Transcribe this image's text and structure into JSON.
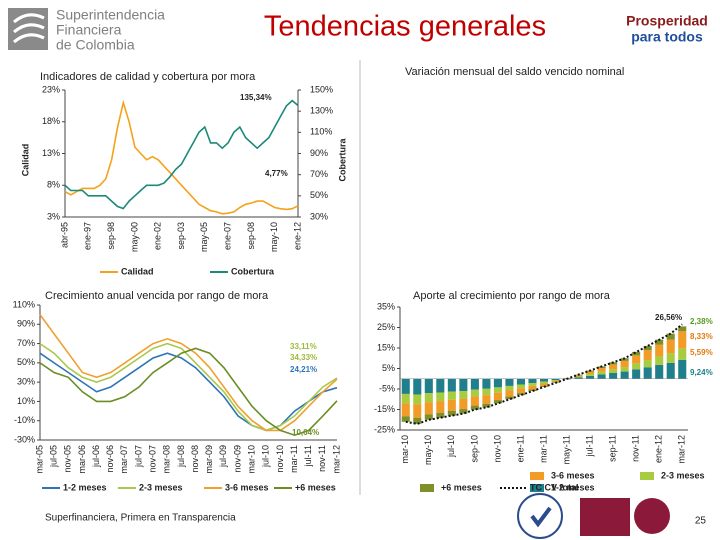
{
  "header": {
    "org": [
      "Superintendencia",
      "Financiera",
      "de Colombia"
    ],
    "title": "Tendencias generales",
    "logo": [
      "Prosperidad",
      "para todos"
    ]
  },
  "footer": {
    "text": "Superfinanciera, Primera en Transparencia",
    "page": "25"
  },
  "chart_data": [
    {
      "type": "line",
      "title": "Indicadores de calidad y cobertura por mora",
      "ylabel": "Calidad",
      "y2label": "Cobertura",
      "categories": [
        "abr-95",
        null,
        null,
        null,
        "ene-97",
        null,
        null,
        null,
        "sep-98",
        null,
        null,
        null,
        "may-00",
        null,
        null,
        null,
        "ene-02",
        null,
        null,
        null,
        "sep-03",
        null,
        null,
        null,
        "may-05",
        null,
        null,
        null,
        "ene-07",
        null,
        null,
        null,
        "sep-08",
        null,
        null,
        null,
        "may-10",
        null,
        null,
        null,
        "ene-12"
      ],
      "series": [
        {
          "name": "Calidad",
          "color": "#f5a21b",
          "values": [
            7,
            6.5,
            7,
            7.5,
            7.5,
            7.5,
            8,
            9,
            12,
            17,
            21,
            18,
            14,
            13,
            12,
            12.5,
            12,
            11,
            10,
            9,
            8,
            7,
            6,
            5,
            4.5,
            4,
            3.8,
            3.5,
            3.6,
            3.8,
            4.5,
            5,
            5.2,
            5.5,
            5.5,
            5,
            4.5,
            4.3,
            4.2,
            4.3,
            4.77
          ]
        },
        {
          "name": "Cobertura",
          "color": "#1b8a7a",
          "axis": "y2",
          "values": [
            60,
            55,
            55,
            55,
            50,
            50,
            50,
            50,
            45,
            40,
            38,
            45,
            50,
            55,
            60,
            60,
            60,
            62,
            68,
            75,
            80,
            90,
            100,
            110,
            115,
            100,
            100,
            95,
            100,
            110,
            115,
            105,
            100,
            95,
            100,
            105,
            115,
            125,
            135,
            140,
            135.34
          ]
        }
      ],
      "ylim": [
        3,
        23
      ],
      "yticks": [
        {
          "value": 3,
          "label": "3%"
        },
        {
          "value": 8,
          "label": "8%"
        },
        {
          "value": 13,
          "label": "13%"
        },
        {
          "value": 18,
          "label": "18%"
        },
        {
          "value": 23,
          "label": "23%"
        }
      ],
      "y2lim": [
        30,
        150
      ],
      "y2ticks": [
        {
          "value": 30,
          "label": "30%"
        },
        {
          "value": 50,
          "label": "50%"
        },
        {
          "value": 70,
          "label": "70%"
        },
        {
          "value": 90,
          "label": "90%"
        },
        {
          "value": 110,
          "label": "110%"
        },
        {
          "value": 130,
          "label": "130%"
        },
        {
          "value": 150,
          "label": "150%"
        }
      ],
      "annotations": [
        "135,34%",
        "4,77%"
      ]
    },
    {
      "title": "Variación mensual del saldo vencido nominal"
    },
    {
      "type": "line",
      "title": "Crecimiento anual vencida por rango de mora",
      "categories": [
        "mar-05",
        "jul-05",
        "nov-05",
        "mar-06",
        "jul-06",
        "nov-06",
        "mar-07",
        "jul-07",
        "nov-07",
        "mar-08",
        "jul-08",
        "nov-08",
        "mar-09",
        "jul-09",
        "nov-09",
        "mar-10",
        "jul-10",
        "nov-10",
        "mar-11",
        "jul-11",
        "nov-11",
        "mar-12"
      ],
      "series": [
        {
          "name": "1-2 meses",
          "color": "#2e75b6",
          "values": [
            60,
            50,
            40,
            30,
            20,
            25,
            35,
            45,
            55,
            60,
            55,
            45,
            30,
            15,
            -5,
            -15,
            -20,
            -15,
            0,
            10,
            20,
            24.21
          ]
        },
        {
          "name": "2-3 meses",
          "color": "#a9c94a",
          "values": [
            70,
            60,
            45,
            35,
            30,
            35,
            45,
            55,
            65,
            70,
            65,
            50,
            35,
            20,
            0,
            -15,
            -20,
            -15,
            -5,
            10,
            25,
            34.33
          ]
        },
        {
          "name": "3-6 meses",
          "color": "#f0a030",
          "values": [
            100,
            80,
            60,
            40,
            35,
            40,
            50,
            60,
            70,
            75,
            70,
            60,
            45,
            25,
            5,
            -10,
            -20,
            -20,
            -10,
            5,
            20,
            33.11
          ]
        },
        {
          "name": "+6 meses",
          "color": "#6b8e23",
          "values": [
            50,
            40,
            35,
            20,
            10,
            10,
            15,
            25,
            40,
            50,
            60,
            65,
            60,
            45,
            25,
            5,
            -10,
            -20,
            -25,
            -20,
            -5,
            10.64
          ]
        }
      ],
      "ylim": [
        -30,
        110
      ],
      "yticks": [
        {
          "value": -30,
          "label": "-30%"
        },
        {
          "value": -10,
          "label": "-10%"
        },
        {
          "value": 10,
          "label": "10%"
        },
        {
          "value": 30,
          "label": "30%"
        },
        {
          "value": 50,
          "label": "50%"
        },
        {
          "value": 70,
          "label": "70%"
        },
        {
          "value": 90,
          "label": "90%"
        },
        {
          "value": 110,
          "label": "110%"
        }
      ],
      "annotations": [
        "33,11%",
        "34,33%",
        "24,21%",
        "10,64%"
      ]
    },
    {
      "type": "bar",
      "title": "Aporte al crecimiento por rango de mora",
      "categories": [
        "mar-10",
        null,
        "may-10",
        null,
        "jul-10",
        null,
        "sep-10",
        null,
        "nov-10",
        null,
        "ene-11",
        null,
        "mar-11",
        null,
        "may-11",
        null,
        "jul-11",
        null,
        "sep-11",
        null,
        "nov-11",
        null,
        "ene-12",
        null,
        "mar-12"
      ],
      "series": [
        {
          "name": "1-2 meses",
          "color": "#1f7f8c",
          "values": [
            -7.4,
            -7.7,
            -7,
            -6.7,
            -6.3,
            -6,
            -5.3,
            -4.9,
            -4.2,
            -3.5,
            -2.8,
            -2.1,
            -1.4,
            -0.7,
            0.3,
            0.7,
            1.4,
            2.1,
            2.8,
            3.5,
            4.6,
            5.6,
            6.7,
            7.7,
            9.24
          ]
        },
        {
          "name": "2-3 meses",
          "color": "#a7cc3f",
          "values": [
            -4.6,
            -4.8,
            -4.4,
            -4.2,
            -4,
            -3.7,
            -3.3,
            -3.1,
            -2.6,
            -2.2,
            -1.8,
            -1.3,
            -0.9,
            -0.4,
            -0.2,
            0.4,
            0.9,
            1.3,
            1.8,
            2.2,
            2.9,
            3.5,
            4.2,
            4.8,
            5.59
          ]
        },
        {
          "name": "3-6 meses",
          "color": "#f29b26",
          "values": [
            -6.3,
            -6.6,
            -6,
            -5.7,
            -5.4,
            -5.1,
            -4.5,
            -4.2,
            -3.6,
            -3,
            -2.4,
            -1.8,
            -1.2,
            -0.6,
            0.1,
            0.6,
            1.2,
            1.8,
            2.4,
            3,
            3.9,
            4.8,
            5.7,
            6.6,
            8.33
          ]
        },
        {
          "name": "+6 meses",
          "color": "#7f8f2a",
          "values": [
            -2.7,
            -2.9,
            -2.6,
            -2.5,
            -2.3,
            -2.2,
            -2,
            -1.8,
            -1.6,
            -1.3,
            -1,
            -0.8,
            -0.5,
            -0.3,
            -0.2,
            0.3,
            0.5,
            0.8,
            1,
            1.3,
            1.7,
            2.1,
            2.5,
            2.9,
            2.38
          ]
        }
      ],
      "line": {
        "name": "TC CV total",
        "color": "#111111",
        "values": [
          -21,
          -22,
          -20,
          -19,
          -18,
          -17,
          -15,
          -14,
          -12,
          -10,
          -8,
          -6,
          -4,
          -2,
          0,
          2,
          4,
          6,
          8,
          10,
          13,
          16,
          19,
          22,
          26.56
        ]
      },
      "ylim": [
        -25,
        35
      ],
      "yticks": [
        {
          "value": -25,
          "label": "-25%"
        },
        {
          "value": -15,
          "label": "-15%"
        },
        {
          "value": -5,
          "label": "-5%"
        },
        {
          "value": 5,
          "label": "5%"
        },
        {
          "value": 15,
          "label": "15%"
        },
        {
          "value": 25,
          "label": "25%"
        },
        {
          "value": 35,
          "label": "35%"
        }
      ],
      "annotations": [
        "26,56%",
        "2,38%",
        "8,33%",
        "5,59%",
        "9,24%"
      ]
    }
  ]
}
